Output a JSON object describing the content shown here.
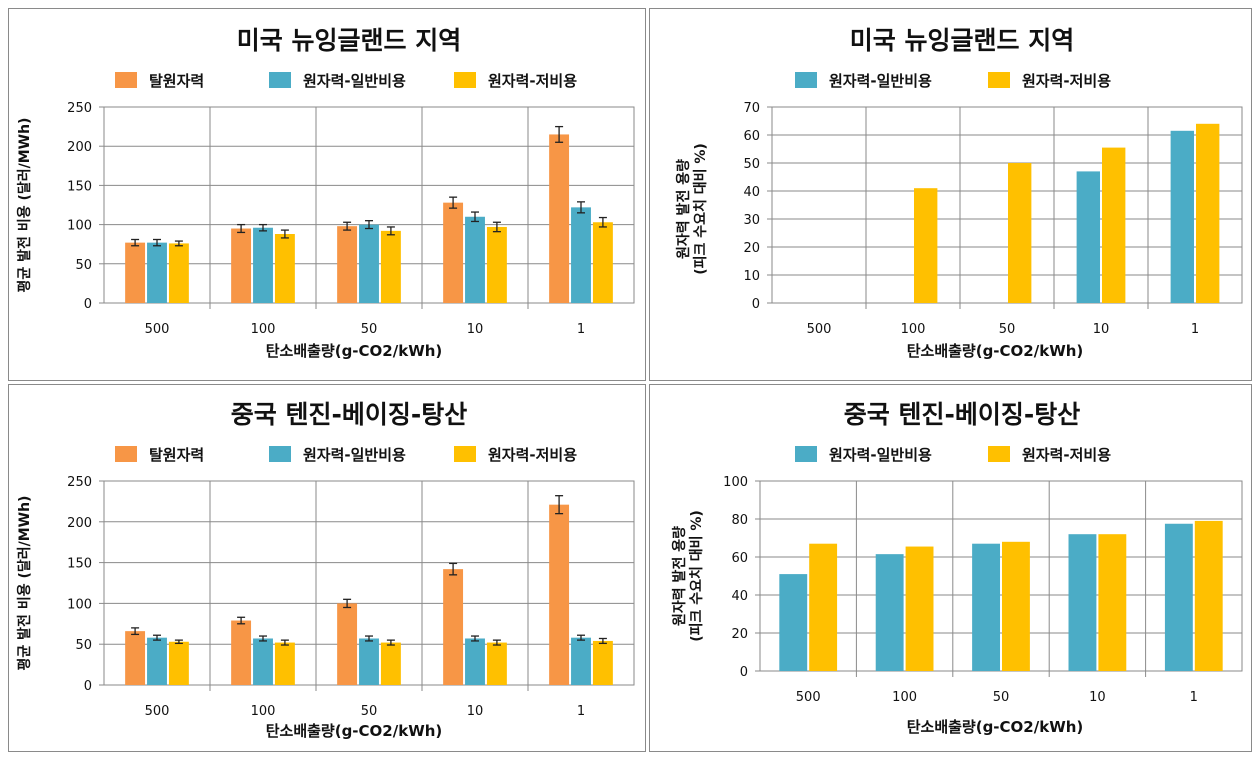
{
  "colors": {
    "tal": "#F79646",
    "general": "#4BACC6",
    "low": "#FFC000",
    "error_bar": "#222222",
    "grid": "#8a8a8a"
  },
  "chart_data": [
    {
      "type": "bar",
      "title": "미국 뉴잉글랜드 지역",
      "xlabel": "탄소배출량(g-CO2/kWh)",
      "ylabel": "평균 발전 비용 (달러/MWh)",
      "ylim": [
        0,
        250
      ],
      "yticks": [
        "0",
        "50",
        "100",
        "150",
        "200",
        "250"
      ],
      "categories": [
        "500",
        "100",
        "50",
        "10",
        "1"
      ],
      "series": [
        {
          "name": "탈원자력",
          "color_key": "tal",
          "values": [
            77,
            95,
            98,
            128,
            215
          ],
          "errors": [
            4,
            5,
            5,
            7,
            10
          ]
        },
        {
          "name": "원자력-일반비용",
          "color_key": "general",
          "values": [
            77,
            96,
            100,
            110,
            122
          ],
          "errors": [
            4,
            4,
            5,
            6,
            7
          ]
        },
        {
          "name": "원자력-저비용",
          "color_key": "low",
          "values": [
            76,
            88,
            92,
            97,
            103
          ],
          "errors": [
            3,
            5,
            5,
            6,
            6
          ]
        }
      ],
      "error_bars": true,
      "grid": true,
      "legend_position": "top"
    },
    {
      "type": "bar",
      "title": "미국 뉴잉글랜드 지역",
      "xlabel": "탄소배출량(g-CO2/kWh)",
      "ylabel_lines": [
        "원자력 발전 용량",
        "(피크 수요치 대비 %)"
      ],
      "ylim": [
        0,
        70
      ],
      "yticks": [
        "0",
        "10",
        "20",
        "30",
        "40",
        "50",
        "60",
        "70"
      ],
      "categories": [
        "500",
        "100",
        "50",
        "10",
        "1"
      ],
      "series": [
        {
          "name": "원자력-일반비용",
          "color_key": "general",
          "values": [
            0,
            0,
            0,
            47,
            61.5
          ]
        },
        {
          "name": "원자력-저비용",
          "color_key": "low",
          "values": [
            0,
            41,
            50,
            55.5,
            64
          ]
        }
      ],
      "error_bars": false,
      "grid": true,
      "legend_position": "top"
    },
    {
      "type": "bar",
      "title": "중국 텐진-베이징-탕산",
      "xlabel": "탄소배출량(g-CO2/kWh)",
      "ylabel": "평균 발전 비용 (달러/MWh)",
      "ylim": [
        0,
        250
      ],
      "yticks": [
        "0",
        "50",
        "100",
        "150",
        "200",
        "250"
      ],
      "categories": [
        "500",
        "100",
        "50",
        "10",
        "1"
      ],
      "series": [
        {
          "name": "탈원자력",
          "color_key": "tal",
          "values": [
            66,
            79,
            100,
            142,
            221
          ],
          "errors": [
            4,
            4,
            5,
            7,
            11
          ]
        },
        {
          "name": "원자력-일반비용",
          "color_key": "general",
          "values": [
            58,
            57,
            57,
            57,
            58
          ],
          "errors": [
            3,
            3,
            3,
            3,
            3
          ]
        },
        {
          "name": "원자력-저비용",
          "color_key": "low",
          "values": [
            53,
            52,
            52,
            52,
            54
          ],
          "errors": [
            2,
            3,
            3,
            3,
            3
          ]
        }
      ],
      "error_bars": true,
      "grid": true,
      "legend_position": "top"
    },
    {
      "type": "bar",
      "title": "중국 텐진-베이징-탕산",
      "xlabel": "탄소배출량(g-CO2/kWh)",
      "ylabel_lines": [
        "원자력 발전 용량",
        "(피크 수요치 대비 %)"
      ],
      "ylim": [
        0,
        100
      ],
      "yticks": [
        "0",
        "20",
        "40",
        "60",
        "80",
        "100"
      ],
      "categories": [
        "500",
        "100",
        "50",
        "10",
        "1"
      ],
      "series": [
        {
          "name": "원자력-일반비용",
          "color_key": "general",
          "values": [
            51,
            61.5,
            67,
            72,
            77.5
          ]
        },
        {
          "name": "원자력-저비용",
          "color_key": "low",
          "values": [
            67,
            65.5,
            68,
            72,
            79
          ]
        }
      ],
      "error_bars": false,
      "grid": true,
      "legend_position": "top"
    }
  ]
}
